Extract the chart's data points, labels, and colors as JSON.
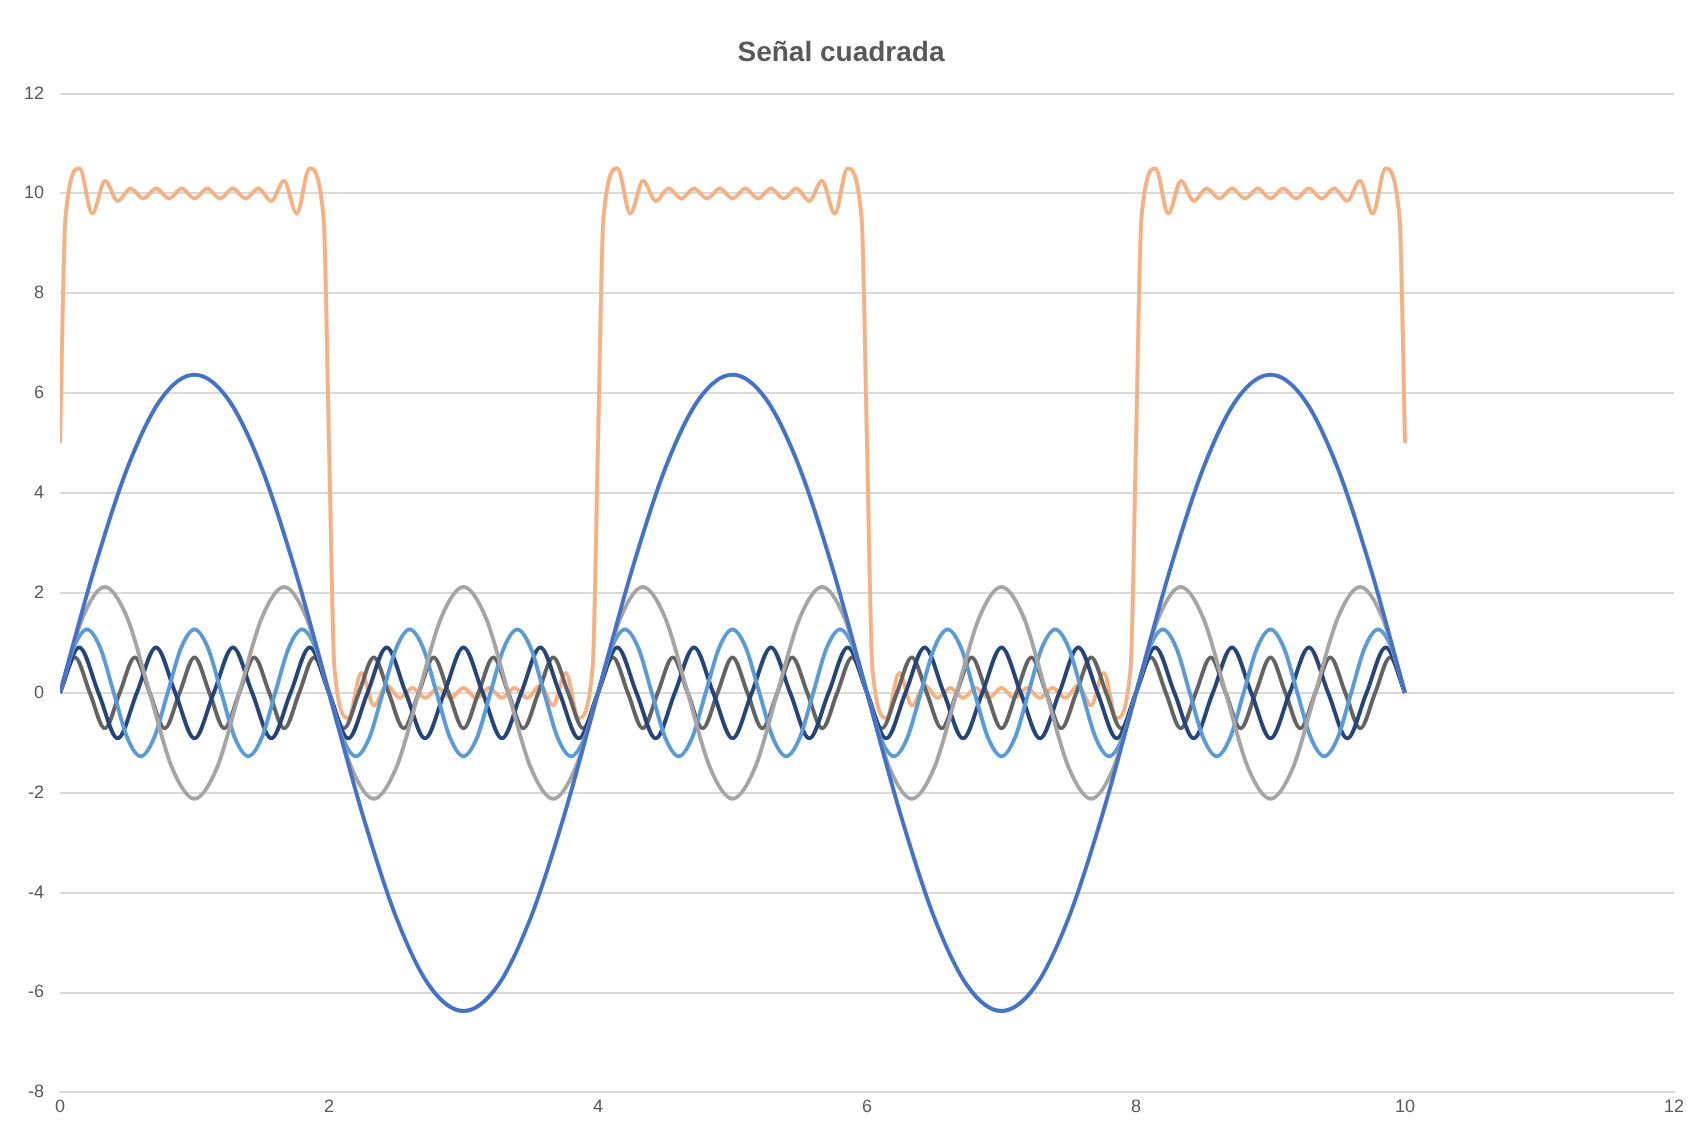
{
  "chart_data": {
    "type": "line",
    "title": "Señal cuadrada",
    "xlim": [
      0,
      12
    ],
    "xticks": [
      0,
      2,
      4,
      6,
      8,
      10,
      12
    ],
    "ylim": [
      -8,
      12
    ],
    "yticks": [
      -8,
      -6,
      -4,
      -2,
      0,
      2,
      4,
      6,
      8,
      10,
      12
    ],
    "grid": "y",
    "legend": false,
    "marker": "none",
    "line_style": "solid",
    "series": [
      {
        "color": "#4472c4",
        "x": [
          0,
          0.25,
          0.5,
          0.75,
          1,
          1.25,
          1.5,
          1.75,
          2,
          2.25,
          2.5,
          2.75,
          3,
          3.25,
          3.5,
          3.75,
          4,
          4.25,
          4.5,
          4.75,
          5,
          5.25,
          5.5,
          5.75,
          6,
          6.25,
          6.5,
          6.75,
          7,
          7.25,
          7.5,
          7.75,
          8,
          8.25,
          8.5,
          8.75,
          9,
          9.25,
          9.5,
          9.75,
          10
        ],
        "values": [
          0,
          2.44,
          4.5,
          5.88,
          6.37,
          5.88,
          4.5,
          2.44,
          0,
          -2.44,
          -4.5,
          -5.88,
          -6.37,
          -5.88,
          -4.5,
          -2.44,
          0,
          2.44,
          4.5,
          5.88,
          6.37,
          5.88,
          4.5,
          2.44,
          0,
          -2.44,
          -4.5,
          -5.88,
          -6.37,
          -5.88,
          -4.5,
          -2.44,
          0,
          2.44,
          4.5,
          5.88,
          6.37,
          5.88,
          4.5,
          2.44,
          0
        ]
      },
      {
        "color": "#a5a5a5",
        "x": [
          0,
          0.167,
          0.333,
          0.5,
          0.667,
          0.833,
          1,
          1.167,
          1.333,
          1.5,
          1.667,
          1.833,
          2,
          2.167,
          2.333,
          2.5,
          2.667,
          2.833,
          3,
          3.167,
          3.333,
          3.5,
          3.667,
          3.833,
          4,
          4.167,
          4.333,
          4.5,
          4.667,
          4.833,
          5,
          5.167,
          5.333,
          5.5,
          5.667,
          5.833,
          6,
          6.167,
          6.333,
          6.5,
          6.667,
          6.833,
          7,
          7.167,
          7.333,
          7.5,
          7.667,
          7.833,
          8,
          8.167,
          8.333,
          8.5,
          8.667,
          8.833,
          9,
          9.167,
          9.333,
          9.5,
          9.667,
          9.833,
          10
        ],
        "values": [
          0,
          1.5,
          2.12,
          1.5,
          0,
          -1.5,
          -2.12,
          -1.5,
          0,
          1.5,
          2.12,
          1.5,
          0,
          -1.5,
          -2.12,
          -1.5,
          0,
          1.5,
          2.12,
          1.5,
          0,
          -1.5,
          -2.12,
          -1.5,
          0,
          1.5,
          2.12,
          1.5,
          0,
          -1.5,
          -2.12,
          -1.5,
          0,
          1.5,
          2.12,
          1.5,
          0,
          -1.5,
          -2.12,
          -1.5,
          0,
          1.5,
          2.12,
          1.5,
          0,
          -1.5,
          -2.12,
          -1.5,
          0,
          1.5,
          2.12,
          1.5,
          0,
          -1.5,
          -2.12,
          -1.5,
          0,
          1.5,
          2.12,
          1.5,
          0
        ]
      },
      {
        "color": "#5b9bd5",
        "x": [
          0,
          0.1,
          0.2,
          0.3,
          0.4,
          0.5,
          0.6,
          0.7,
          0.8,
          0.9,
          1,
          1.1,
          1.2,
          1.3,
          1.4,
          1.5,
          1.6,
          1.7,
          1.8,
          1.9,
          2,
          2.1,
          2.2,
          2.3,
          2.4,
          2.5,
          2.6,
          2.7,
          2.8,
          2.9,
          3,
          3.1,
          3.2,
          3.3,
          3.4,
          3.5,
          3.6,
          3.7,
          3.8,
          3.9,
          4,
          4.1,
          4.2,
          4.3,
          4.4,
          4.5,
          4.6,
          4.7,
          4.8,
          4.9,
          5,
          5.1,
          5.2,
          5.3,
          5.4,
          5.5,
          5.6,
          5.7,
          5.8,
          5.9,
          6,
          6.1,
          6.2,
          6.3,
          6.4,
          6.5,
          6.6,
          6.7,
          6.8,
          6.9,
          7,
          7.1,
          7.2,
          7.3,
          7.4,
          7.5,
          7.6,
          7.7,
          7.8,
          7.9,
          8,
          8.1,
          8.2,
          8.3,
          8.4,
          8.5,
          8.6,
          8.7,
          8.8,
          8.9,
          9,
          9.1,
          9.2,
          9.3,
          9.4,
          9.5,
          9.6,
          9.7,
          9.8,
          9.9,
          10
        ],
        "values": [
          0,
          0.9,
          1.27,
          0.9,
          0,
          -0.9,
          -1.27,
          -0.9,
          0,
          0.9,
          1.27,
          0.9,
          0,
          -0.9,
          -1.27,
          -0.9,
          0,
          0.9,
          1.27,
          0.9,
          0,
          -0.9,
          -1.27,
          -0.9,
          0,
          0.9,
          1.27,
          0.9,
          0,
          -0.9,
          -1.27,
          -0.9,
          0,
          0.9,
          1.27,
          0.9,
          0,
          -0.9,
          -1.27,
          -0.9,
          0,
          0.9,
          1.27,
          0.9,
          0,
          -0.9,
          -1.27,
          -0.9,
          0,
          0.9,
          1.27,
          0.9,
          0,
          -0.9,
          -1.27,
          -0.9,
          0,
          0.9,
          1.27,
          0.9,
          0,
          -0.9,
          -1.27,
          -0.9,
          0,
          0.9,
          1.27,
          0.9,
          0,
          -0.9,
          -1.27,
          -0.9,
          0,
          0.9,
          1.27,
          0.9,
          0,
          -0.9,
          -1.27,
          -0.9,
          0,
          0.9,
          1.27,
          0.9,
          0,
          -0.9,
          -1.27,
          -0.9,
          0,
          0.9,
          1.27,
          0.9,
          0,
          -0.9,
          -1.27,
          -0.9,
          0,
          0.9,
          1.27,
          0.9,
          0
        ]
      },
      {
        "color": "#264478",
        "x": [
          0,
          0.143,
          0.286,
          0.429,
          0.571,
          0.714,
          0.857,
          1,
          1.143,
          1.286,
          1.429,
          1.571,
          1.714,
          1.857,
          2,
          2.143,
          2.286,
          2.429,
          2.571,
          2.714,
          2.857,
          3,
          3.143,
          3.286,
          3.429,
          3.571,
          3.714,
          3.857,
          4,
          4.143,
          4.286,
          4.429,
          4.571,
          4.714,
          4.857,
          5,
          5.143,
          5.286,
          5.429,
          5.571,
          5.714,
          5.857,
          6,
          6.143,
          6.286,
          6.429,
          6.571,
          6.714,
          6.857,
          7,
          7.143,
          7.286,
          7.429,
          7.571,
          7.714,
          7.857,
          8,
          8.143,
          8.286,
          8.429,
          8.571,
          8.714,
          8.857,
          9,
          9.143,
          9.286,
          9.429,
          9.571,
          9.714,
          9.857,
          10
        ],
        "values": [
          0,
          0.91,
          0,
          -0.91,
          0,
          0.91,
          0,
          -0.91,
          0,
          0.91,
          0,
          -0.91,
          0,
          0.91,
          0,
          -0.91,
          0,
          0.91,
          0,
          -0.91,
          0,
          0.91,
          0,
          -0.91,
          0,
          0.91,
          0,
          -0.91,
          0,
          0.91,
          0,
          -0.91,
          0,
          0.91,
          0,
          -0.91,
          0,
          0.91,
          0,
          -0.91,
          0,
          0.91,
          0,
          -0.91,
          0,
          0.91,
          0,
          -0.91,
          0,
          0.91,
          0,
          -0.91,
          0,
          0.91,
          0,
          -0.91,
          0,
          0.91,
          0,
          -0.91,
          0,
          0.91,
          0,
          -0.91,
          0,
          0.91,
          0,
          -0.91,
          0,
          0.91,
          0
        ]
      },
      {
        "color": "#636363",
        "x": [
          0,
          0.111,
          0.222,
          0.333,
          0.444,
          0.556,
          0.667,
          0.778,
          0.889,
          1,
          1.111,
          1.222,
          1.333,
          1.444,
          1.556,
          1.667,
          1.778,
          1.889,
          2,
          2.111,
          2.222,
          2.333,
          2.444,
          2.556,
          2.667,
          2.778,
          2.889,
          3,
          3.111,
          3.222,
          3.333,
          3.444,
          3.556,
          3.667,
          3.778,
          3.889,
          4,
          4.111,
          4.222,
          4.333,
          4.444,
          4.556,
          4.667,
          4.778,
          4.889,
          5,
          5.111,
          5.222,
          5.333,
          5.444,
          5.556,
          5.667,
          5.778,
          5.889,
          6,
          6.111,
          6.222,
          6.333,
          6.444,
          6.556,
          6.667,
          6.778,
          6.889,
          7,
          7.111,
          7.222,
          7.333,
          7.444,
          7.556,
          7.667,
          7.778,
          7.889,
          8,
          8.111,
          8.222,
          8.333,
          8.444,
          8.556,
          8.667,
          8.778,
          8.889,
          9,
          9.111,
          9.222,
          9.333,
          9.444,
          9.556,
          9.667,
          9.778,
          9.889,
          10
        ],
        "values": [
          0,
          0.71,
          0,
          -0.71,
          0,
          0.71,
          0,
          -0.71,
          0,
          0.71,
          0,
          -0.71,
          0,
          0.71,
          0,
          -0.71,
          0,
          0.71,
          0,
          -0.71,
          0,
          0.71,
          0,
          -0.71,
          0,
          0.71,
          0,
          -0.71,
          0,
          0.71,
          0,
          -0.71,
          0,
          0.71,
          0,
          -0.71,
          0,
          0.71,
          0,
          -0.71,
          0,
          0.71,
          0,
          -0.71,
          0,
          0.71,
          0,
          -0.71,
          0,
          0.71,
          0,
          -0.71,
          0,
          0.71,
          0,
          -0.71,
          0,
          0.71,
          0,
          -0.71,
          0,
          0.71,
          0,
          -0.71,
          0,
          0.71,
          0,
          -0.71,
          0,
          0.71,
          0,
          -0.71,
          0,
          0.71,
          0,
          -0.71,
          0,
          0.71,
          0,
          -0.71,
          0,
          0.71,
          0,
          -0.71,
          0,
          0.71,
          0,
          -0.71,
          0,
          0.71,
          0
        ]
      },
      {
        "color": "#f4b183",
        "x": [
          0,
          0.04,
          0.145,
          0.24,
          0.335,
          0.43,
          0.525,
          0.62,
          0.715,
          0.81,
          0.905,
          1,
          1.095,
          1.19,
          1.285,
          1.38,
          1.475,
          1.57,
          1.665,
          1.76,
          1.855,
          1.96,
          2,
          2.04,
          2.145,
          2.24,
          2.335,
          2.43,
          2.525,
          2.62,
          2.715,
          2.81,
          2.905,
          3,
          3.095,
          3.19,
          3.285,
          3.38,
          3.475,
          3.57,
          3.665,
          3.76,
          3.855,
          3.96,
          4,
          4.04,
          4.145,
          4.24,
          4.335,
          4.43,
          4.525,
          4.62,
          4.715,
          4.81,
          4.905,
          5,
          5.095,
          5.19,
          5.285,
          5.38,
          5.475,
          5.57,
          5.665,
          5.76,
          5.855,
          5.96,
          6,
          6.04,
          6.145,
          6.24,
          6.335,
          6.43,
          6.525,
          6.62,
          6.715,
          6.81,
          6.905,
          7,
          7.095,
          7.19,
          7.285,
          7.38,
          7.475,
          7.57,
          7.665,
          7.76,
          7.855,
          7.96,
          8,
          8.04,
          8.145,
          8.24,
          8.335,
          8.43,
          8.525,
          8.62,
          8.715,
          8.81,
          8.905,
          9,
          9.095,
          9.19,
          9.285,
          9.38,
          9.475,
          9.57,
          9.665,
          9.76,
          9.855,
          9.96,
          10
        ],
        "values": [
          5,
          9.5,
          10.5,
          9.6,
          10.25,
          9.85,
          10.1,
          9.9,
          10.1,
          9.9,
          10.1,
          9.9,
          10.1,
          9.9,
          10.1,
          9.9,
          10.1,
          9.85,
          10.25,
          9.6,
          10.5,
          9.5,
          5,
          0.5,
          -0.5,
          0.4,
          -0.25,
          0.15,
          -0.1,
          0.1,
          -0.1,
          0.1,
          -0.1,
          0.1,
          -0.1,
          0.1,
          -0.1,
          0.1,
          -0.1,
          0.15,
          -0.25,
          0.4,
          -0.5,
          0.5,
          5,
          9.5,
          10.5,
          9.6,
          10.25,
          9.85,
          10.1,
          9.9,
          10.1,
          9.9,
          10.1,
          9.9,
          10.1,
          9.9,
          10.1,
          9.9,
          10.1,
          9.85,
          10.25,
          9.6,
          10.5,
          9.5,
          5,
          0.5,
          -0.5,
          0.4,
          -0.25,
          0.15,
          -0.1,
          0.1,
          -0.1,
          0.1,
          -0.1,
          0.1,
          -0.1,
          0.1,
          -0.1,
          0.1,
          -0.1,
          0.15,
          -0.25,
          0.4,
          -0.5,
          0.5,
          5,
          9.5,
          10.5,
          9.6,
          10.25,
          9.85,
          10.1,
          9.9,
          10.1,
          9.9,
          10.1,
          9.9,
          10.1,
          9.9,
          10.1,
          9.9,
          10.1,
          9.85,
          10.25,
          9.6,
          10.5,
          9.5,
          5
        ]
      }
    ]
  }
}
